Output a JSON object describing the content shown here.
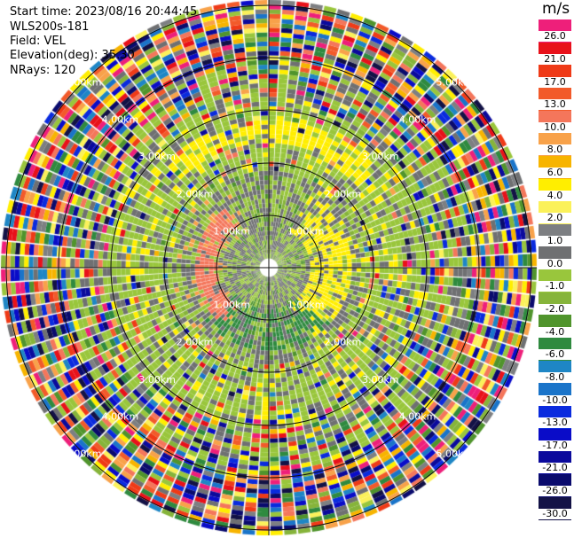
{
  "header": {
    "start_time": "Start time: 2023/08/16 20:44:45",
    "instrument": "WLS200s-181",
    "field": "Field: VEL",
    "elevation": "Elevation(deg): 35.30",
    "nrays": "NRays: 120"
  },
  "range_rings": [
    "1.00km",
    "2.00km",
    "3.00km",
    "4.00km",
    "5.00km"
  ],
  "colorbar": {
    "unit": "m/s",
    "entries": [
      {
        "label": "26.0",
        "color": "#ee1f7a"
      },
      {
        "label": "21.0",
        "color": "#e8111a"
      },
      {
        "label": "17.0",
        "color": "#ef3a17"
      },
      {
        "label": "13.0",
        "color": "#f25a2a"
      },
      {
        "label": "10.0",
        "color": "#f4765b"
      },
      {
        "label": "8.0",
        "color": "#f8a24a"
      },
      {
        "label": "6.0",
        "color": "#f7b400"
      },
      {
        "label": "4.0",
        "color": "#ffee00"
      },
      {
        "label": "2.0",
        "color": "#fbf15a"
      },
      {
        "label": "1.0",
        "color": "#7d7f82"
      },
      {
        "label": "0.0",
        "color": "#6f7072"
      },
      {
        "label": "-1.0",
        "color": "#99c63c"
      },
      {
        "label": "-2.0",
        "color": "#86b43a"
      },
      {
        "label": "-4.0",
        "color": "#50942c"
      },
      {
        "label": "-6.0",
        "color": "#2f8a3f"
      },
      {
        "label": "-8.0",
        "color": "#1e86c5"
      },
      {
        "label": "-10.0",
        "color": "#1a74c9"
      },
      {
        "label": "-13.0",
        "color": "#0a2bde"
      },
      {
        "label": "-17.0",
        "color": "#0a0cc8"
      },
      {
        "label": "-21.0",
        "color": "#0b0a9c"
      },
      {
        "label": "-26.0",
        "color": "#0a0b6d"
      },
      {
        "label": "-30.0",
        "color": "#131246"
      }
    ]
  }
}
